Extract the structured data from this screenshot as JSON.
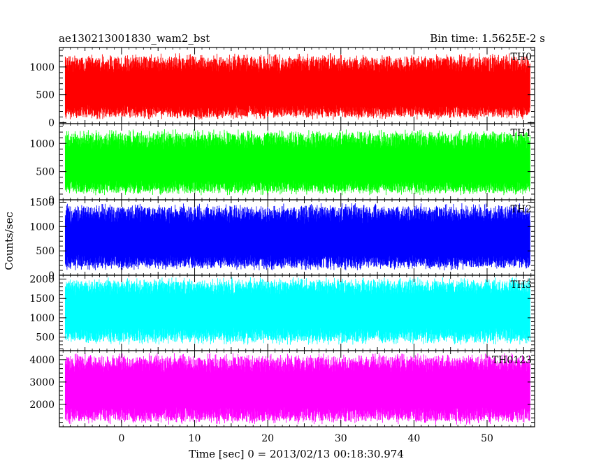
{
  "header": {
    "title": "ae130213001830_wam2_bst",
    "bin_time": "Bin time: 1.5625E-2 s"
  },
  "chart_data": {
    "type": "line",
    "title": "ae130213001830_wam2_bst",
    "xlabel": "Time [sec] 0 = 2013/02/13 00:18:30.974",
    "ylabel": "Counts/sec",
    "xlim": [
      -8.5,
      56.5
    ],
    "x_ticks": [
      0,
      10,
      20,
      30,
      40,
      50
    ],
    "x_range_data": [
      -7.7,
      55.9
    ],
    "panels": [
      {
        "name": "TH0",
        "color": "#ff0000",
        "ylim": [
          -20,
          1350
        ],
        "ticks": [
          0,
          500,
          1000
        ],
        "band": [
          50,
          1250
        ],
        "mean": 560
      },
      {
        "name": "TH1",
        "color": "#00ff00",
        "ylim": [
          0,
          1350
        ],
        "ticks": [
          0,
          500,
          1000
        ],
        "band": [
          80,
          1250
        ],
        "mean": 580
      },
      {
        "name": "TH2",
        "color": "#0000ff",
        "ylim": [
          0,
          1550
        ],
        "ticks": [
          0,
          500,
          1000,
          1500
        ],
        "band": [
          100,
          1480
        ],
        "mean": 700
      },
      {
        "name": "TH3",
        "color": "#00ffff",
        "ylim": [
          150,
          2100
        ],
        "ticks": [
          500,
          1000,
          1500,
          2000
        ],
        "band": [
          300,
          2050
        ],
        "mean": 1150
      },
      {
        "name": "TH0123",
        "color": "#ff00ff",
        "ylim": [
          1000,
          4400
        ],
        "ticks": [
          2000,
          3000,
          4000
        ],
        "band": [
          1100,
          4300
        ],
        "mean": 2600
      }
    ]
  }
}
